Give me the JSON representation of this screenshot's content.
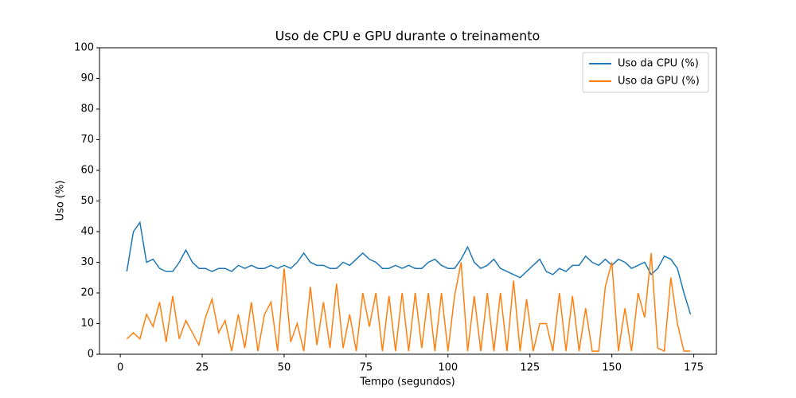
{
  "chart_data": {
    "type": "line",
    "title": "Uso de CPU e GPU durante o treinamento",
    "xlabel": "Tempo (segundos)",
    "ylabel": "Uso (%)",
    "x": [
      2,
      4,
      6,
      8,
      10,
      12,
      14,
      16,
      18,
      20,
      22,
      24,
      26,
      28,
      30,
      32,
      34,
      36,
      38,
      40,
      42,
      44,
      46,
      48,
      50,
      52,
      54,
      56,
      58,
      60,
      62,
      64,
      66,
      68,
      70,
      72,
      74,
      76,
      78,
      80,
      82,
      84,
      86,
      88,
      90,
      92,
      94,
      96,
      98,
      100,
      102,
      104,
      106,
      108,
      110,
      112,
      114,
      116,
      118,
      120,
      122,
      124,
      126,
      128,
      130,
      132,
      134,
      136,
      138,
      140,
      142,
      144,
      146,
      148,
      150,
      152,
      154,
      156,
      158,
      160,
      162,
      164,
      166,
      168,
      170,
      172,
      174
    ],
    "series": [
      {
        "name": "Uso da CPU (%)",
        "color": "#1f77b4",
        "values": [
          27,
          40,
          43,
          30,
          31,
          28,
          27,
          27,
          30,
          34,
          30,
          28,
          28,
          27,
          28,
          28,
          27,
          29,
          28,
          29,
          28,
          28,
          29,
          28,
          29,
          28,
          30,
          33,
          30,
          29,
          29,
          28,
          28,
          30,
          29,
          31,
          33,
          31,
          30,
          28,
          28,
          29,
          28,
          29,
          28,
          28,
          30,
          31,
          29,
          28,
          28,
          31,
          35,
          30,
          28,
          29,
          31,
          28,
          27,
          26,
          25,
          27,
          29,
          31,
          27,
          26,
          28,
          27,
          29,
          29,
          32,
          30,
          29,
          31,
          29,
          31,
          30,
          28,
          29,
          30,
          26,
          28,
          32,
          31,
          28,
          20,
          13
        ]
      },
      {
        "name": "Uso da GPU (%)",
        "color": "#ff7f0e",
        "values": [
          5,
          7,
          5,
          13,
          9,
          17,
          4,
          19,
          5,
          11,
          7,
          3,
          12,
          18,
          7,
          11,
          1,
          13,
          2,
          17,
          1,
          13,
          17,
          1,
          28,
          4,
          10,
          1,
          22,
          3,
          17,
          2,
          23,
          2,
          13,
          1,
          20,
          9,
          20,
          1,
          19,
          1,
          20,
          1,
          20,
          2,
          20,
          1,
          20,
          1,
          19,
          30,
          1,
          19,
          1,
          20,
          1,
          20,
          1,
          24,
          1,
          18,
          1,
          10,
          10,
          1,
          20,
          1,
          19,
          1,
          15,
          1,
          1,
          22,
          30,
          1,
          15,
          1,
          20,
          12,
          33,
          2,
          1,
          25,
          10,
          1,
          1
        ]
      }
    ],
    "xlim": [
      -6.34,
      181.9
    ],
    "ylim": [
      0,
      100
    ],
    "xticks": [
      0,
      25,
      50,
      75,
      100,
      125,
      150,
      175
    ],
    "yticks": [
      0,
      10,
      20,
      30,
      40,
      50,
      60,
      70,
      80,
      90,
      100
    ],
    "legend": "upper right"
  }
}
